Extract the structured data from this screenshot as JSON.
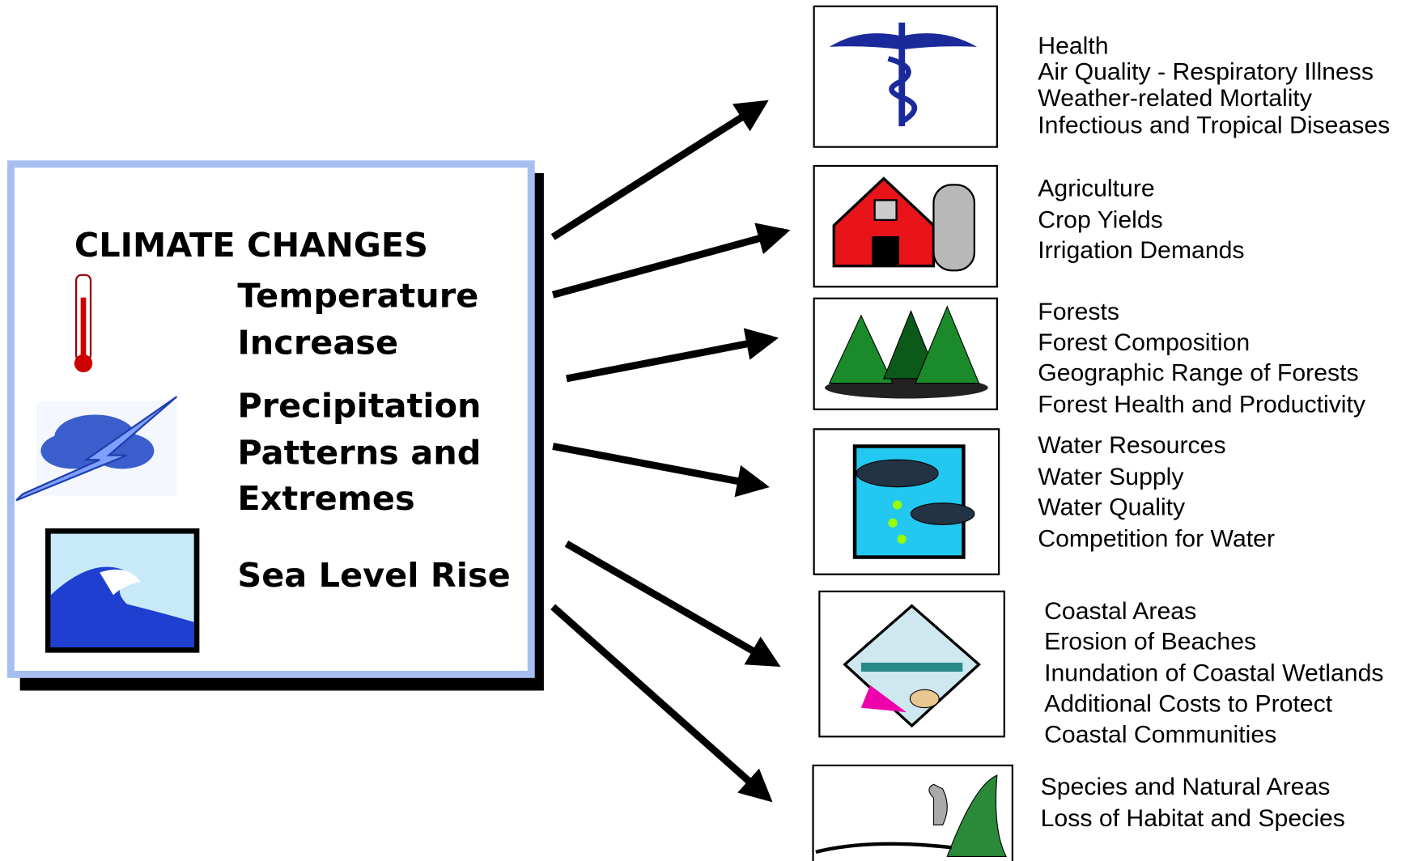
{
  "causes": {
    "title": "CLIMATE CHANGES",
    "items": [
      [
        "Temperature",
        "Increase"
      ],
      [
        "Precipitation",
        "Patterns and",
        "Extremes"
      ],
      [
        "Sea Level Rise"
      ]
    ]
  },
  "impacts": [
    {
      "title": "Health",
      "items": [
        "Air Quality - Respiratory Illness",
        "Weather-related Mortality",
        "Infectious and Tropical Diseases"
      ]
    },
    {
      "title": "Agriculture",
      "items": [
        "Crop Yields",
        "Irrigation Demands"
      ]
    },
    {
      "title": "Forests",
      "items": [
        "Forest Composition",
        "Geographic Range of Forests",
        "Forest Health and Productivity"
      ]
    },
    {
      "title": "Water Resources",
      "items": [
        "Water Supply",
        "Water Quality",
        "Competition for Water"
      ]
    },
    {
      "title": "Coastal Areas",
      "items": [
        "Erosion of Beaches",
        "Inundation of Coastal Wetlands",
        "Additional Costs to Protect",
        "Coastal Communities"
      ]
    },
    {
      "title": "Species and Natural Areas",
      "items": [
        "Loss of Habitat and Species"
      ]
    }
  ]
}
